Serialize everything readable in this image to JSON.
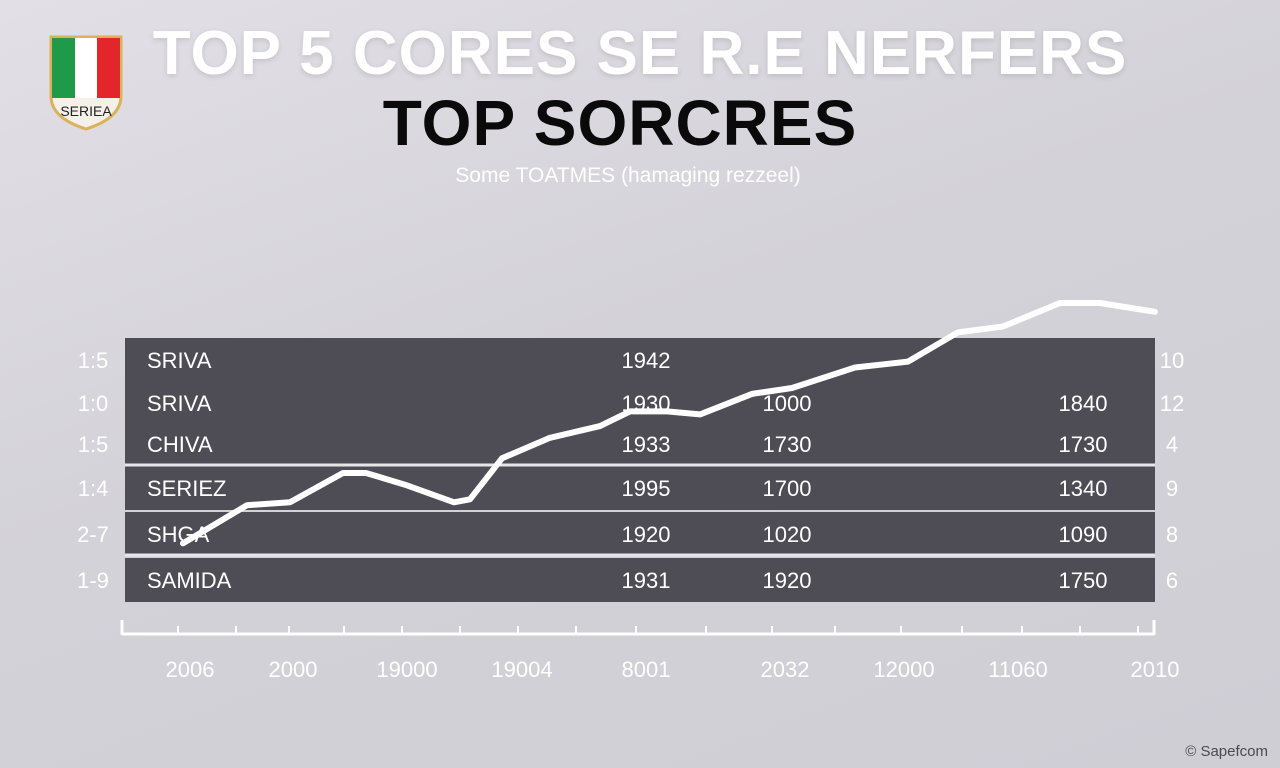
{
  "header": {
    "title": "TOP 5 CORES SE R.E NERFERS",
    "title2": "TOP  SORCRES",
    "subtitle": "Some TOATMES (hamaging rezzeel)"
  },
  "badge": {
    "text": "SERIEA",
    "colors": [
      "#1e9a48",
      "#ffffff",
      "#e2262c"
    ],
    "border": "#d9b25a"
  },
  "watermark": "© Sapefcom",
  "chart_data": {
    "type": "line",
    "x_tick_labels": [
      "2006",
      "2000",
      "19000",
      "19004",
      "8001",
      "2032",
      "12000",
      "11060",
      "2010"
    ],
    "series": [
      {
        "values": [
          0.04,
          0.17,
          0.18,
          0.28,
          0.28,
          0.24,
          0.18,
          0.19,
          0.33,
          0.4,
          0.44,
          0.49,
          0.49,
          0.48,
          0.55,
          0.57,
          0.64,
          0.66,
          0.76,
          0.78,
          0.86,
          0.86,
          0.83
        ]
      }
    ],
    "table": {
      "rows": [
        {
          "label": "SRIVA",
          "left": "1:5",
          "right": "10",
          "cells": [
            "1942",
            "",
            ""
          ]
        },
        {
          "label": "SRIVA",
          "left": "1:0",
          "right": "12",
          "cells": [
            "1930",
            "1000",
            "1840"
          ]
        },
        {
          "label": "CHIVA",
          "left": "1:5",
          "right": "4",
          "cells": [
            "1933",
            "1730",
            "1730"
          ]
        },
        {
          "label": "SERIEZ",
          "left": "1:4",
          "right": "9",
          "cells": [
            "1995",
            "1700",
            "1340"
          ]
        },
        {
          "label": "SHGA",
          "left": "2-7",
          "right": "8",
          "cells": [
            "1920",
            "1020",
            "1090"
          ]
        },
        {
          "label": "SAMIDA",
          "left": "1-9",
          "right": "6",
          "cells": [
            "1931",
            "1920",
            "1750"
          ]
        }
      ]
    },
    "colors": {
      "row": "#4e4d55",
      "line": "#ffffff",
      "axis": "#ffffff"
    }
  }
}
